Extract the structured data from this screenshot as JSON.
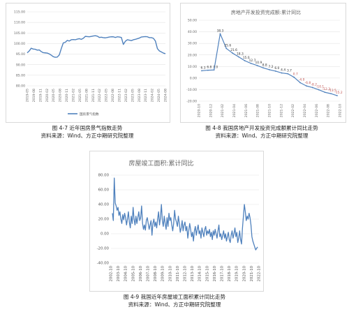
{
  "captions": [
    {
      "figure": "图 4-7 近年国房景气指数走势",
      "source": "资料来源：Wind、方正中期研究院整理"
    },
    {
      "figure": "图 4-8 我国房地产开发投资完成额累计同比走势",
      "source": "资料来源：Wind、方正中期研究院整理"
    },
    {
      "figure": "图 4-9 我国近年房屋竣工面积累计同比走势",
      "source": "资料来源：Wind、方正中期研究院整理"
    }
  ],
  "chart_data": [
    {
      "type": "line",
      "title": "",
      "ylim": [
        80,
        115
      ],
      "yticks": [
        "115.00",
        "110.00",
        "105.00",
        "100.00",
        "95.00",
        "90.00",
        "85.00",
        "80.00"
      ],
      "xticks": [
        "2019-05",
        "2019-08",
        "2019-11",
        "2020-02",
        "2020-05",
        "2020-08",
        "2020-11",
        "2021-02",
        "2021-05",
        "2021-08",
        "2021-11",
        "2022-02",
        "2022-05",
        "2022-08",
        "2022-11",
        "2023-02",
        "2023-05",
        "2023-08",
        "2023-11",
        "2024-02",
        "2024-05",
        "2024-08"
      ],
      "series": [
        {
          "name": "国房景气指数",
          "color": "#4f81bd",
          "values": [
            95.6,
            96.5,
            97.8,
            97.4,
            97.3,
            96.9,
            97.0,
            96.2,
            95.7,
            95.6,
            95.5,
            95.1,
            94.5,
            93.8,
            93.5,
            93.6,
            94.6,
            97.6,
            100.3,
            100.6,
            101.5,
            101.2,
            101.8,
            101.9,
            101.8,
            102.1,
            102.3,
            102.0,
            102.5,
            103.4,
            103.3,
            103.2,
            103.4,
            103.6,
            103.7,
            103.5,
            102.9,
            103.0,
            102.8,
            102.7,
            102.9,
            103.1,
            103.2,
            103.2,
            102.9,
            103.2,
            103.1,
            102.9,
            99.6,
            101.1,
            101.8,
            101.6,
            101.4,
            101.8,
            102.0,
            102.3,
            102.6,
            103.1,
            103.2,
            103.3,
            103.2,
            102.8,
            102.8,
            102.5,
            101.2,
            97.6,
            96.5,
            96.0,
            95.5,
            95.2
          ]
        }
      ]
    },
    {
      "type": "line",
      "title": "房地产开发投资完成额:累计同比",
      "ylim": [
        -20,
        50
      ],
      "yticks": [
        "50.00",
        "40.00",
        "30.00",
        "20.00",
        "10.00",
        "0.00",
        "-10.00",
        "-20.00"
      ],
      "xticks": [
        "2020-10",
        "2020-12",
        "2021-02",
        "2021-04",
        "2021-06",
        "2021-08",
        "2021-10",
        "2021-12",
        "2022-02",
        "2022-04",
        "2022-06",
        "2022-08",
        "2022-10"
      ],
      "series": [
        {
          "name": "",
          "color": "#4f81bd",
          "values": [
            6.3,
            6.8,
            7.0,
            38.3,
            25.6,
            21.6,
            18.3,
            15.0,
            12.7,
            10.9,
            8.8,
            7.2,
            6.0,
            4.4,
            3.7,
            0.7,
            -4.0,
            -6.8,
            -8.2,
            -10.1,
            -12.3,
            -13.5,
            -15.2
          ],
          "labels": [
            "6.3",
            "6.8",
            "7.0",
            "38.3",
            "25.6",
            "21.6",
            "18.3",
            "15.0",
            "12.7",
            "10.9",
            "8.8",
            "7.2",
            "6.0",
            "4.4",
            "3.7",
            "0.7",
            "-4.0",
            "-6.8",
            "-8.2",
            "-10.1",
            "-12.3",
            "-13.5",
            "-15.2"
          ]
        }
      ]
    },
    {
      "type": "line",
      "title": "房屋竣工面积:累计同比",
      "ylim": [
        -40,
        80
      ],
      "yticks": [
        "80.00",
        "60.00",
        "40.00",
        "20.00",
        "0.00",
        "-20.00",
        "-40.00"
      ],
      "xticks": [
        "2002-10",
        "2003-10",
        "2004-10",
        "2005-10",
        "2006-10",
        "2007-10",
        "2008-10",
        "2009-10",
        "2010-10",
        "2011-10",
        "2012-10",
        "2013-10",
        "2014-10",
        "2015-10",
        "2016-10",
        "2017-10",
        "2018-10",
        "2019-10",
        "2020-10",
        "2021-10",
        "2022-10"
      ],
      "series": [
        {
          "name": "",
          "color": "#4f81bd",
          "values": [
            28,
            18,
            76,
            42,
            38,
            32,
            36,
            25,
            30,
            20,
            14,
            26,
            19,
            28,
            22,
            12,
            20,
            30,
            16,
            8,
            24,
            14,
            36,
            20,
            12,
            24,
            14,
            22,
            30,
            18,
            22,
            38,
            14,
            6,
            12,
            5,
            18,
            22,
            14,
            6,
            12,
            18,
            -2,
            14,
            20,
            10,
            16,
            8,
            20,
            30,
            12,
            22,
            40,
            18,
            10,
            24,
            14,
            6,
            22,
            10,
            28,
            18,
            22,
            12,
            4,
            14,
            32,
            20,
            16,
            10,
            24,
            14,
            2,
            8,
            18,
            4,
            12,
            16,
            4,
            10,
            -6,
            4,
            14,
            6,
            -4,
            2,
            -10,
            4,
            10,
            -2,
            6,
            12,
            0,
            4,
            -6,
            8,
            2,
            -4,
            6,
            10,
            -2,
            4,
            0,
            6,
            -4,
            2,
            -8,
            4,
            -2,
            6,
            0,
            -6,
            4,
            12,
            -4,
            0,
            -8,
            -2,
            4,
            -6,
            0,
            -10,
            -4,
            2,
            -8,
            -12,
            -2,
            4,
            -6,
            0,
            8,
            -4,
            2,
            -12,
            -6,
            4,
            -8,
            -14,
            8,
            24,
            40,
            30,
            18,
            24,
            20,
            28,
            22,
            12,
            -4,
            -10,
            -14,
            -18,
            -22,
            -20,
            -18
          ]
        }
      ]
    }
  ]
}
